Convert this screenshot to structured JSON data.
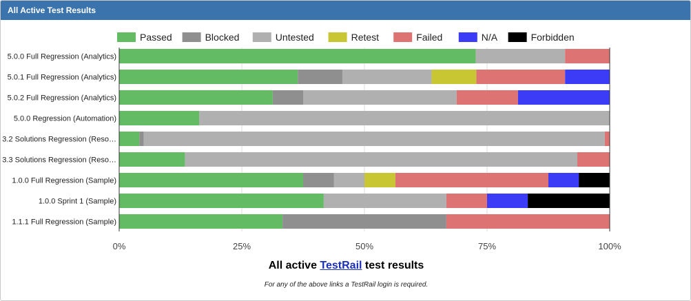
{
  "panel": {
    "title": "All Active Test Results"
  },
  "caption": {
    "prefix": "All active ",
    "link": "TestRail",
    "suffix": " test results"
  },
  "note": "For any of the above links a TestRail login is required.",
  "chart_data": {
    "type": "bar",
    "orientation": "horizontal",
    "stacked": true,
    "percent": true,
    "xlim": [
      0,
      100
    ],
    "xticks": [
      "0%",
      "25%",
      "50%",
      "75%",
      "100%"
    ],
    "grid": true,
    "legend_position": "top",
    "categories": [
      "5.0.0 Full Regression (Analytics)",
      "5.0.1 Full Regression (Analytics)",
      "5.0.2 Full Regression (Analytics)",
      "5.0.0 Regression (Automation)",
      "3.2 Solutions Regression (Reso…",
      "3.3 Solutions Regression (Reso…",
      "1.0.0 Full Regression (Sample)",
      "1.0.0 Sprint 1 (Sample)",
      "1.1.1 Full Regression (Sample)"
    ],
    "series": [
      {
        "name": "Passed",
        "color": "#63bb63",
        "values": [
          72.7,
          36.4,
          31.3,
          16.3,
          4.1,
          13.4,
          37.5,
          41.7,
          33.3
        ]
      },
      {
        "name": "Blocked",
        "color": "#8f8f8f",
        "values": [
          0,
          9.1,
          6.2,
          0,
          0.9,
          0,
          6.3,
          0,
          33.4
        ]
      },
      {
        "name": "Untested",
        "color": "#b0b0b0",
        "values": [
          18.2,
          18.2,
          31.3,
          83.7,
          94.0,
          80.0,
          6.2,
          25.0,
          0
        ]
      },
      {
        "name": "Retest",
        "color": "#c9c633",
        "values": [
          0,
          9.1,
          0,
          0,
          0,
          0,
          6.3,
          0,
          0
        ]
      },
      {
        "name": "Failed",
        "color": "#dd7373",
        "values": [
          9.1,
          18.1,
          12.5,
          0,
          1.0,
          6.6,
          31.2,
          8.3,
          33.3
        ]
      },
      {
        "name": "N/A",
        "color": "#3c3cf7",
        "values": [
          0,
          9.1,
          18.7,
          0,
          0,
          0,
          6.2,
          8.3,
          0
        ]
      },
      {
        "name": "Forbidden",
        "color": "#000000",
        "values": [
          0,
          0,
          0,
          0,
          0,
          0,
          6.3,
          16.7,
          0
        ]
      }
    ]
  }
}
